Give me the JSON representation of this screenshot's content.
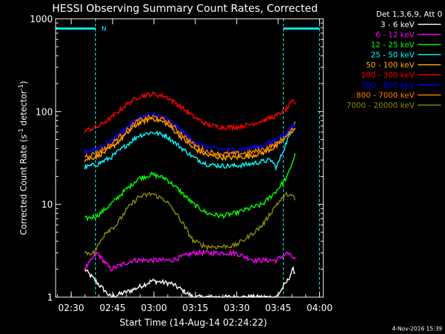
{
  "chart_data": {
    "type": "line",
    "title": "HESSI Observing Summary Count Rates, Corrected",
    "xlabel": "Start Time (14-Aug-14 02:24:22)",
    "ylabel": "Corrected Count Rate (s",
    "ylabel_sup1": "-1",
    "ylabel_mid": " detector",
    "ylabel_sup2": "-1",
    "ylabel_end": ")",
    "y_scale": "log",
    "ylim": [
      1,
      1000
    ],
    "xlim_minutes": [
      0,
      97
    ],
    "x_ticks": [
      {
        "label": "02:30",
        "minutes": 5.63
      },
      {
        "label": "02:45",
        "minutes": 20.63
      },
      {
        "label": "03:00",
        "minutes": 35.63
      },
      {
        "label": "03:15",
        "minutes": 50.63
      },
      {
        "label": "03:30",
        "minutes": 65.63
      },
      {
        "label": "03:45",
        "minutes": 80.63
      },
      {
        "label": "04:00",
        "minutes": 95.63
      }
    ],
    "y_ticks": [
      {
        "label": "1",
        "value": 1
      },
      {
        "label": "10",
        "value": 10
      },
      {
        "label": "100",
        "value": 100
      },
      {
        "label": "1000",
        "value": 1000
      }
    ],
    "legend_header": "Det 1,3,6,9, Att 0",
    "legend_placement": "right",
    "timestamp": "4-Nov-2016 15:39",
    "flag_label": "N",
    "night_intervals": [
      [
        0,
        14.5
      ],
      [
        82.5,
        95.6
      ]
    ],
    "data_range_minutes": [
      10.5,
      87.0
    ],
    "series": [
      {
        "name": "3 - 6 keV",
        "color": "#ffffff",
        "points": [
          [
            10.5,
            2.0
          ],
          [
            20,
            1.0
          ],
          [
            28,
            1.2
          ],
          [
            35,
            1.5
          ],
          [
            42,
            1.4
          ],
          [
            50,
            1.0
          ],
          [
            60,
            1.0
          ],
          [
            70,
            1.0
          ],
          [
            80,
            1.0
          ],
          [
            84,
            1.5
          ],
          [
            86,
            2.0
          ],
          [
            87,
            1.8
          ]
        ]
      },
      {
        "name": "6 - 12 keV",
        "color": "#ff00ff",
        "points": [
          [
            10.5,
            2.0
          ],
          [
            15,
            3.0
          ],
          [
            20,
            2.0
          ],
          [
            28,
            2.5
          ],
          [
            35,
            2.5
          ],
          [
            42,
            2.5
          ],
          [
            50,
            3.0
          ],
          [
            58,
            3.0
          ],
          [
            65,
            3.0
          ],
          [
            72,
            2.5
          ],
          [
            80,
            2.5
          ],
          [
            84,
            3.0
          ],
          [
            87,
            2.5
          ]
        ]
      },
      {
        "name": "12 - 25 keV",
        "color": "#00ff00",
        "points": [
          [
            10.5,
            7
          ],
          [
            15,
            7.5
          ],
          [
            20,
            10
          ],
          [
            25,
            14
          ],
          [
            30,
            19
          ],
          [
            35,
            21
          ],
          [
            40,
            19
          ],
          [
            45,
            14
          ],
          [
            50,
            10
          ],
          [
            55,
            8
          ],
          [
            60,
            7.5
          ],
          [
            65,
            8
          ],
          [
            70,
            9
          ],
          [
            75,
            10
          ],
          [
            80,
            14
          ],
          [
            84,
            20
          ],
          [
            86,
            30
          ],
          [
            87,
            35
          ]
        ]
      },
      {
        "name": "25 - 50 keV",
        "color": "#00ffff",
        "points": [
          [
            10.5,
            25
          ],
          [
            15,
            27
          ],
          [
            20,
            32
          ],
          [
            25,
            42
          ],
          [
            30,
            55
          ],
          [
            35,
            60
          ],
          [
            40,
            55
          ],
          [
            45,
            42
          ],
          [
            50,
            32
          ],
          [
            55,
            27
          ],
          [
            60,
            26
          ],
          [
            65,
            26
          ],
          [
            70,
            27
          ],
          [
            75,
            29
          ],
          [
            78,
            30
          ],
          [
            80,
            25
          ],
          [
            82,
            35
          ],
          [
            84,
            50
          ],
          [
            86,
            65
          ],
          [
            87,
            70
          ]
        ]
      },
      {
        "name": "50 - 100 keV",
        "color": "#ffaa00",
        "points": [
          [
            10.5,
            30
          ],
          [
            15,
            33
          ],
          [
            20,
            40
          ],
          [
            25,
            55
          ],
          [
            30,
            75
          ],
          [
            35,
            85
          ],
          [
            40,
            75
          ],
          [
            45,
            55
          ],
          [
            50,
            40
          ],
          [
            55,
            34
          ],
          [
            60,
            32
          ],
          [
            65,
            32
          ],
          [
            70,
            33
          ],
          [
            75,
            36
          ],
          [
            80,
            42
          ],
          [
            84,
            55
          ],
          [
            86,
            70
          ],
          [
            87,
            75
          ]
        ]
      },
      {
        "name": "100 - 300 keV",
        "color": "#ff0000",
        "points": [
          [
            10.5,
            62
          ],
          [
            15,
            68
          ],
          [
            20,
            85
          ],
          [
            25,
            115
          ],
          [
            30,
            145
          ],
          [
            35,
            155
          ],
          [
            40,
            145
          ],
          [
            45,
            115
          ],
          [
            50,
            88
          ],
          [
            55,
            72
          ],
          [
            60,
            68
          ],
          [
            65,
            68
          ],
          [
            70,
            72
          ],
          [
            75,
            80
          ],
          [
            80,
            90
          ],
          [
            84,
            110
          ],
          [
            86,
            130
          ],
          [
            87,
            120
          ]
        ]
      },
      {
        "name": "300 - 800 keV",
        "color": "#0000ff",
        "points": [
          [
            10.5,
            37
          ],
          [
            15,
            40
          ],
          [
            20,
            48
          ],
          [
            25,
            65
          ],
          [
            30,
            85
          ],
          [
            35,
            95
          ],
          [
            40,
            85
          ],
          [
            45,
            65
          ],
          [
            50,
            48
          ],
          [
            55,
            41
          ],
          [
            60,
            39
          ],
          [
            65,
            39
          ],
          [
            70,
            40
          ],
          [
            75,
            43
          ],
          [
            80,
            50
          ],
          [
            84,
            60
          ],
          [
            86,
            70
          ],
          [
            87,
            72
          ]
        ]
      },
      {
        "name": "800 - 7000 keV",
        "color": "#ff7f00",
        "points": [
          [
            10.5,
            33
          ],
          [
            15,
            36
          ],
          [
            20,
            44
          ],
          [
            25,
            60
          ],
          [
            30,
            80
          ],
          [
            35,
            88
          ],
          [
            40,
            80
          ],
          [
            45,
            60
          ],
          [
            50,
            44
          ],
          [
            55,
            37
          ],
          [
            60,
            35
          ],
          [
            65,
            35
          ],
          [
            70,
            36
          ],
          [
            75,
            39
          ],
          [
            80,
            45
          ],
          [
            84,
            55
          ],
          [
            86,
            65
          ],
          [
            87,
            68
          ]
        ]
      },
      {
        "name": "7000 - 20000 keV",
        "color": "#8b8b00",
        "points": [
          [
            10.5,
            3.0
          ],
          [
            14,
            3.0
          ],
          [
            18,
            5
          ],
          [
            22,
            6
          ],
          [
            26,
            9
          ],
          [
            30,
            12
          ],
          [
            35,
            13
          ],
          [
            40,
            11
          ],
          [
            45,
            7
          ],
          [
            50,
            4
          ],
          [
            55,
            3.5
          ],
          [
            60,
            3.5
          ],
          [
            65,
            3.6
          ],
          [
            70,
            4.5
          ],
          [
            75,
            6
          ],
          [
            80,
            10
          ],
          [
            84,
            13
          ],
          [
            86,
            12
          ],
          [
            87,
            11
          ]
        ]
      }
    ]
  }
}
